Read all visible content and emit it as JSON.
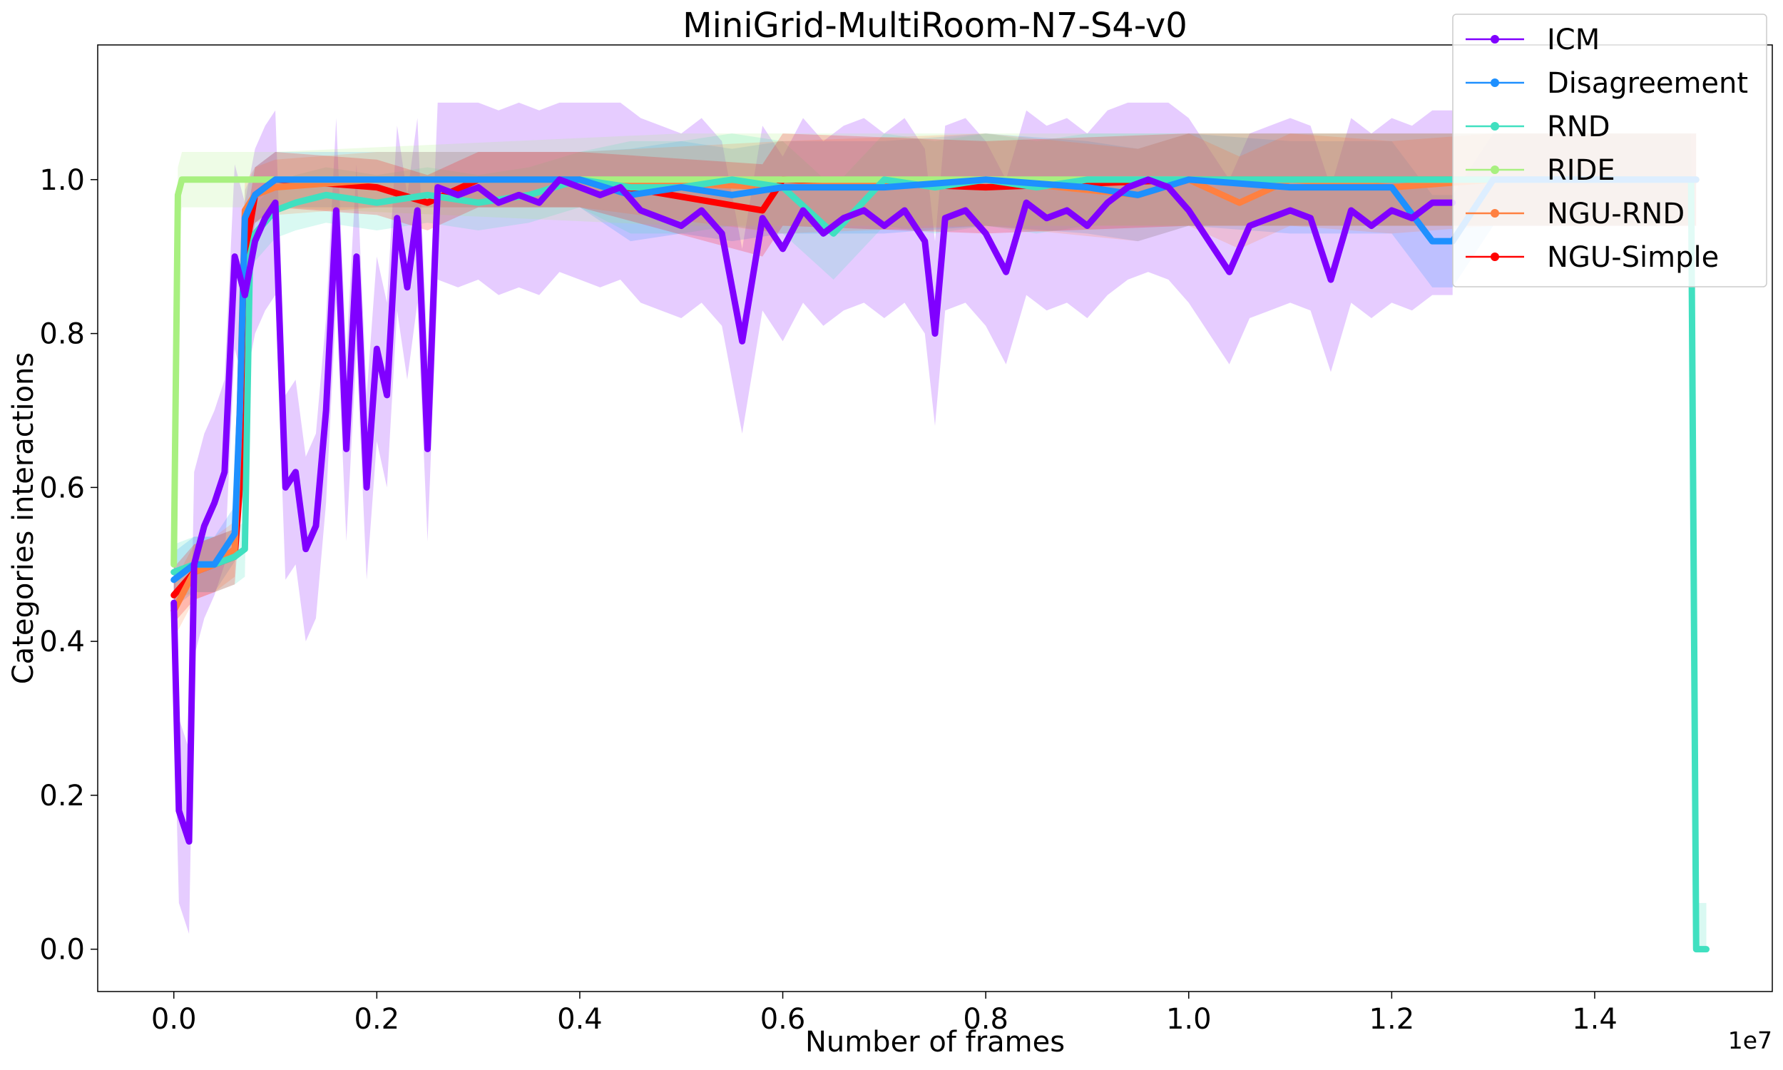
{
  "chart_data": {
    "type": "line",
    "title": "MiniGrid-MultiRoom-N7-S4-v0",
    "xlabel": "Number of frames",
    "ylabel": "Categories interactions",
    "x_offset_label": "1e7",
    "xlim": [
      -0.075,
      1.575
    ],
    "ylim": [
      -0.055,
      1.175
    ],
    "x_ticks": [
      "0.0",
      "0.2",
      "0.4",
      "0.6",
      "0.8",
      "1.0",
      "1.2",
      "1.4"
    ],
    "y_ticks": [
      "0.0",
      "0.2",
      "0.4",
      "0.6",
      "0.8",
      "1.0"
    ],
    "legend_position": "top-right",
    "series": [
      {
        "name": "ICM",
        "color": "#8000ff",
        "x": [
          0.0,
          0.005,
          0.01,
          0.015,
          0.02,
          0.03,
          0.04,
          0.05,
          0.06,
          0.07,
          0.08,
          0.09,
          0.1,
          0.11,
          0.12,
          0.13,
          0.14,
          0.15,
          0.16,
          0.17,
          0.18,
          0.19,
          0.2,
          0.21,
          0.22,
          0.23,
          0.24,
          0.25,
          0.26,
          0.28,
          0.3,
          0.32,
          0.34,
          0.36,
          0.38,
          0.4,
          0.42,
          0.44,
          0.46,
          0.48,
          0.5,
          0.52,
          0.54,
          0.56,
          0.58,
          0.6,
          0.62,
          0.64,
          0.66,
          0.68,
          0.7,
          0.72,
          0.74,
          0.75,
          0.76,
          0.78,
          0.8,
          0.82,
          0.84,
          0.86,
          0.88,
          0.9,
          0.92,
          0.94,
          0.96,
          0.98,
          1.0,
          1.02,
          1.04,
          1.06,
          1.08,
          1.1,
          1.12,
          1.14,
          1.16,
          1.18,
          1.2,
          1.22,
          1.24,
          1.26
        ],
        "y": [
          0.45,
          0.18,
          0.16,
          0.14,
          0.5,
          0.55,
          0.58,
          0.62,
          0.9,
          0.85,
          0.92,
          0.95,
          0.97,
          0.6,
          0.62,
          0.52,
          0.55,
          0.7,
          0.96,
          0.65,
          0.9,
          0.6,
          0.78,
          0.72,
          0.95,
          0.86,
          0.96,
          0.65,
          0.99,
          0.98,
          0.99,
          0.97,
          0.98,
          0.97,
          1.0,
          0.99,
          0.98,
          0.99,
          0.96,
          0.95,
          0.94,
          0.96,
          0.93,
          0.79,
          0.95,
          0.91,
          0.96,
          0.93,
          0.95,
          0.96,
          0.94,
          0.96,
          0.92,
          0.8,
          0.95,
          0.96,
          0.93,
          0.88,
          0.97,
          0.95,
          0.96,
          0.94,
          0.97,
          0.99,
          1.0,
          0.99,
          0.96,
          0.92,
          0.88,
          0.94,
          0.95,
          0.96,
          0.95,
          0.87,
          0.96,
          0.94,
          0.96,
          0.95,
          0.97,
          0.97
        ]
      },
      {
        "name": "Disagreement",
        "color": "#1e90ff",
        "x": [
          0.0,
          0.02,
          0.04,
          0.06,
          0.065,
          0.07,
          0.08,
          0.1,
          0.2,
          0.4,
          0.45,
          0.5,
          0.55,
          0.6,
          0.7,
          0.8,
          0.9,
          0.95,
          1.0,
          1.1,
          1.2,
          1.24,
          1.26,
          1.3,
          1.4,
          1.5
        ],
        "y": [
          0.48,
          0.5,
          0.5,
          0.54,
          0.7,
          0.95,
          0.98,
          1.0,
          1.0,
          1.0,
          0.98,
          0.99,
          0.98,
          0.99,
          0.99,
          1.0,
          0.99,
          0.98,
          1.0,
          0.99,
          0.99,
          0.92,
          0.92,
          1.0,
          1.0,
          1.0
        ]
      },
      {
        "name": "RND",
        "color": "#40e0c0",
        "x": [
          0.0,
          0.02,
          0.04,
          0.06,
          0.07,
          0.075,
          0.08,
          0.1,
          0.12,
          0.15,
          0.2,
          0.25,
          0.3,
          0.35,
          0.4,
          0.45,
          0.5,
          0.55,
          0.6,
          0.65,
          0.7,
          0.75,
          0.8,
          0.85,
          0.9,
          0.95,
          1.0,
          1.1,
          1.2,
          1.3,
          1.4,
          1.495,
          1.5,
          1.51
        ],
        "y": [
          0.49,
          0.5,
          0.5,
          0.51,
          0.52,
          0.9,
          0.93,
          0.96,
          0.97,
          0.98,
          0.97,
          0.98,
          0.97,
          0.98,
          1.0,
          0.99,
          0.99,
          1.0,
          0.99,
          0.93,
          1.0,
          0.99,
          1.0,
          0.99,
          1.0,
          1.0,
          1.0,
          1.0,
          1.0,
          1.0,
          1.0,
          1.0,
          0.0,
          0.0
        ]
      },
      {
        "name": "RIDE",
        "color": "#a8f080",
        "x": [
          0.0,
          0.004,
          0.008,
          0.02,
          0.1,
          0.5,
          1.0,
          1.5
        ],
        "y": [
          0.5,
          0.98,
          1.0,
          1.0,
          1.0,
          1.0,
          1.0,
          1.0
        ]
      },
      {
        "name": "NGU-RND",
        "color": "#ff8040",
        "x": [
          0.0,
          0.02,
          0.04,
          0.06,
          0.065,
          0.07,
          0.08,
          0.1,
          0.2,
          0.4,
          0.6,
          0.8,
          0.95,
          1.0,
          1.05,
          1.1,
          1.2,
          1.3,
          1.4,
          1.5
        ],
        "y": [
          0.44,
          0.49,
          0.5,
          0.52,
          0.7,
          0.96,
          0.98,
          0.99,
          1.0,
          1.0,
          0.99,
          1.0,
          0.98,
          1.0,
          0.97,
          1.0,
          0.99,
          1.0,
          1.0,
          1.0
        ]
      },
      {
        "name": "NGU-Simple",
        "color": "#ff0000",
        "x": [
          0.0,
          0.02,
          0.04,
          0.06,
          0.065,
          0.07,
          0.08,
          0.1,
          0.2,
          0.25,
          0.3,
          0.4,
          0.58,
          0.6,
          0.8,
          1.0,
          1.2,
          1.4,
          1.5
        ],
        "y": [
          0.46,
          0.49,
          0.5,
          0.51,
          0.6,
          0.9,
          0.98,
          1.0,
          0.99,
          0.97,
          1.0,
          1.0,
          0.96,
          1.0,
          0.99,
          1.0,
          1.0,
          1.0,
          1.0
        ]
      }
    ]
  }
}
